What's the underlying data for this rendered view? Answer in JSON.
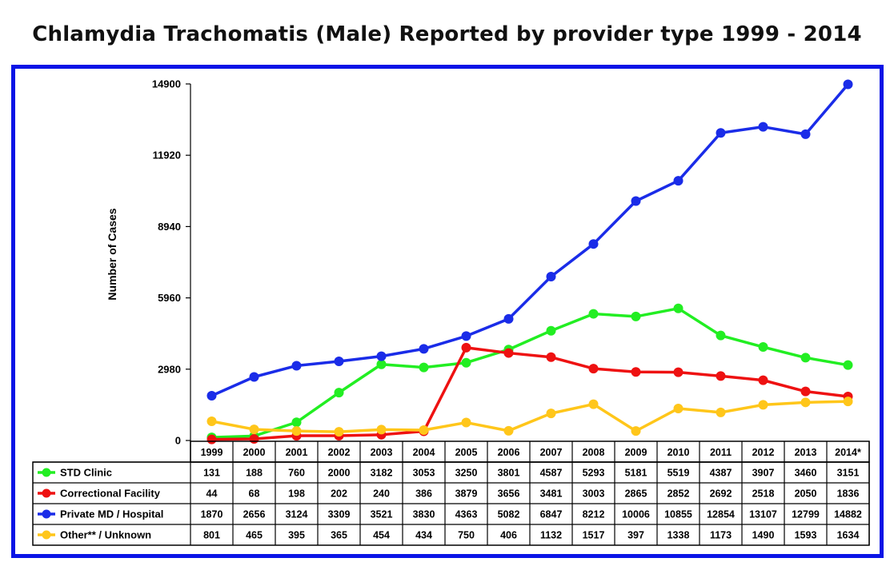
{
  "title": "Chlamydia Trachomatis (Male) Reported by provider type 1999 - 2014",
  "chart_data": {
    "type": "line",
    "title": "Chlamydia Trachomatis (Male) Reported by provider type 1999 - 2014",
    "ylabel": "Number of Cases",
    "xlabel": "",
    "ylim": [
      0,
      14900
    ],
    "yticks": [
      "0",
      "2980",
      "5960",
      "8940",
      "11920",
      "14900"
    ],
    "grid": false,
    "legend": "data table below chart",
    "categories": [
      "1999",
      "2000",
      "2001",
      "2002",
      "2003",
      "2004",
      "2005",
      "2006",
      "2007",
      "2008",
      "2009",
      "2010",
      "2011",
      "2012",
      "2013",
      "2014*"
    ],
    "series": [
      {
        "name": "STD Clinic",
        "color": "#22ee22",
        "values": [
          131,
          188,
          760,
          2000,
          3182,
          3053,
          3250,
          3801,
          4587,
          5293,
          5181,
          5519,
          4387,
          3907,
          3460,
          3151
        ]
      },
      {
        "name": "Correctional Facility",
        "color": "#ee1111",
        "values": [
          44,
          68,
          198,
          202,
          240,
          386,
          3879,
          3656,
          3481,
          3003,
          2865,
          2852,
          2692,
          2518,
          2050,
          1836
        ]
      },
      {
        "name": "Private MD / Hospital",
        "color": "#1a2ce8",
        "values": [
          1870,
          2656,
          3124,
          3309,
          3521,
          3830,
          4363,
          5082,
          6847,
          8212,
          10006,
          10855,
          12854,
          13107,
          12799,
          14882
        ]
      },
      {
        "name": "Other** / Unknown",
        "color": "#ffc61a",
        "values": [
          801,
          465,
          395,
          365,
          454,
          434,
          750,
          406,
          1132,
          1517,
          397,
          1338,
          1173,
          1490,
          1593,
          1634
        ]
      }
    ]
  },
  "frame_color": "#0a14e6"
}
